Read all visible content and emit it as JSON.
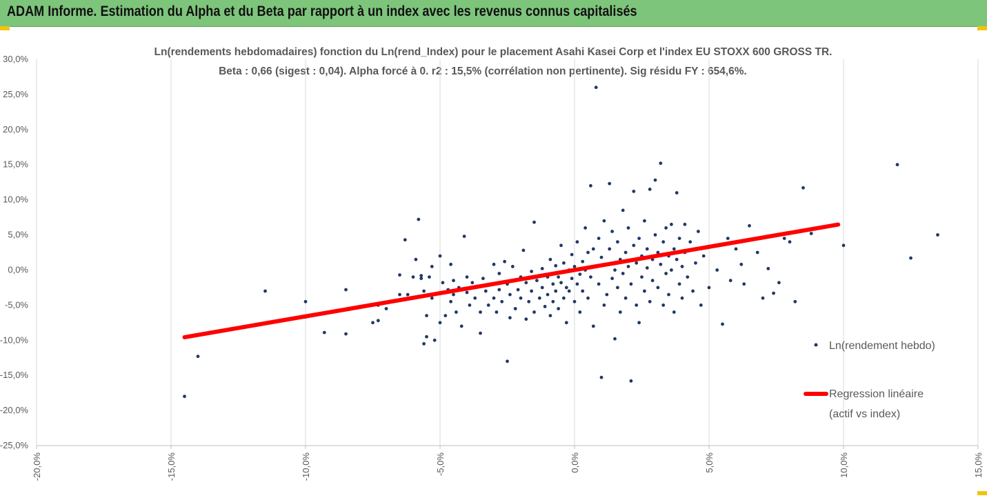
{
  "header": {
    "title": "ADAM Informe. Estimation du Alpha et du Beta par rapport à un index avec les revenus connus capitalisés"
  },
  "chart_data": {
    "type": "scatter",
    "title": "Ln(rendements hebdomadaires) fonction du Ln(rend_Index) pour le placement Asahi Kasei Corp et l'index EU STOXX 600 GROSS TR.",
    "subtitle": "Beta : 0,66 (sigest : 0,04). Alpha forcé à 0. r2 : 15,5% (corrélation non pertinente). Sig résidu FY : 654,6%.",
    "xlim": [
      -0.2,
      0.15
    ],
    "ylim": [
      -0.25,
      0.3
    ],
    "x_ticks": [
      -0.2,
      -0.15,
      -0.1,
      -0.05,
      0.0,
      0.05,
      0.1,
      0.15
    ],
    "y_ticks": [
      -0.25,
      -0.2,
      -0.15,
      -0.1,
      -0.05,
      0.0,
      0.05,
      0.1,
      0.15,
      0.2,
      0.25,
      0.3
    ],
    "x_tick_labels": [
      "-20,0%",
      "-15,0%",
      "-10,0%",
      "-5,0%",
      "0,0%",
      "5,0%",
      "10,0%",
      "15,0%"
    ],
    "y_tick_labels": [
      "-25,0%",
      "-20,0%",
      "-15,0%",
      "-10,0%",
      "-5,0%",
      "0,0%",
      "5,0%",
      "10,0%",
      "15,0%",
      "20,0%",
      "25,0%",
      "30,0%"
    ],
    "grid": "vertical",
    "legend_position": "right",
    "series": [
      {
        "name": "Ln(rendement hebdo)",
        "kind": "scatter",
        "color": "#203864",
        "points": [
          [
            -0.145,
            -0.18
          ],
          [
            -0.14,
            -0.123
          ],
          [
            -0.115,
            -0.03
          ],
          [
            -0.1,
            -0.045
          ],
          [
            -0.1,
            -0.067
          ],
          [
            -0.093,
            -0.089
          ],
          [
            -0.085,
            -0.091
          ],
          [
            -0.085,
            -0.028
          ],
          [
            -0.075,
            -0.075
          ],
          [
            -0.073,
            -0.072
          ],
          [
            -0.073,
            -0.05
          ],
          [
            -0.07,
            -0.055
          ],
          [
            -0.065,
            -0.035
          ],
          [
            -0.065,
            -0.007
          ],
          [
            -0.063,
            0.043
          ],
          [
            -0.062,
            -0.035
          ],
          [
            -0.06,
            -0.01
          ],
          [
            -0.059,
            0.015
          ],
          [
            -0.058,
            0.072
          ],
          [
            -0.057,
            -0.008
          ],
          [
            -0.057,
            -0.012
          ],
          [
            -0.056,
            -0.03
          ],
          [
            -0.056,
            -0.105
          ],
          [
            -0.055,
            -0.095
          ],
          [
            -0.055,
            -0.065
          ],
          [
            -0.054,
            -0.01
          ],
          [
            -0.053,
            -0.04
          ],
          [
            -0.053,
            0.005
          ],
          [
            -0.052,
            -0.1
          ],
          [
            -0.05,
            0.02
          ],
          [
            -0.05,
            -0.075
          ],
          [
            -0.049,
            -0.018
          ],
          [
            -0.048,
            -0.065
          ],
          [
            -0.047,
            -0.028
          ],
          [
            -0.046,
            0.008
          ],
          [
            -0.046,
            -0.045
          ],
          [
            -0.045,
            -0.035
          ],
          [
            -0.045,
            -0.015
          ],
          [
            -0.044,
            -0.06
          ],
          [
            -0.043,
            -0.025
          ],
          [
            -0.042,
            -0.08
          ],
          [
            -0.041,
            0.048
          ],
          [
            -0.04,
            -0.032
          ],
          [
            -0.04,
            -0.01
          ],
          [
            -0.039,
            -0.05
          ],
          [
            -0.038,
            -0.018
          ],
          [
            -0.037,
            -0.04
          ],
          [
            -0.036,
            -0.023
          ],
          [
            -0.035,
            -0.06
          ],
          [
            -0.035,
            -0.09
          ],
          [
            -0.034,
            -0.012
          ],
          [
            -0.033,
            -0.03
          ],
          [
            -0.032,
            -0.05
          ],
          [
            -0.031,
            -0.02
          ],
          [
            -0.03,
            0.008
          ],
          [
            -0.03,
            -0.04
          ],
          [
            -0.029,
            -0.06
          ],
          [
            -0.028,
            -0.005
          ],
          [
            -0.028,
            -0.028
          ],
          [
            -0.027,
            -0.045
          ],
          [
            -0.026,
            0.012
          ],
          [
            -0.025,
            -0.02
          ],
          [
            -0.025,
            -0.13
          ],
          [
            -0.024,
            -0.035
          ],
          [
            -0.024,
            -0.068
          ],
          [
            -0.023,
            0.005
          ],
          [
            -0.022,
            -0.055
          ],
          [
            -0.021,
            -0.028
          ],
          [
            -0.02,
            -0.01
          ],
          [
            -0.02,
            -0.04
          ],
          [
            -0.019,
            0.028
          ],
          [
            -0.018,
            -0.018
          ],
          [
            -0.018,
            -0.07
          ],
          [
            -0.017,
            -0.045
          ],
          [
            -0.016,
            -0.002
          ],
          [
            -0.016,
            -0.03
          ],
          [
            -0.015,
            -0.06
          ],
          [
            -0.015,
            0.068
          ],
          [
            -0.014,
            -0.015
          ],
          [
            -0.013,
            -0.04
          ],
          [
            -0.012,
            0.002
          ],
          [
            -0.012,
            -0.025
          ],
          [
            -0.011,
            -0.052
          ],
          [
            -0.01,
            -0.01
          ],
          [
            -0.01,
            -0.035
          ],
          [
            -0.009,
            0.015
          ],
          [
            -0.009,
            -0.065
          ],
          [
            -0.008,
            -0.02
          ],
          [
            -0.008,
            -0.045
          ],
          [
            -0.007,
            0.006
          ],
          [
            -0.007,
            -0.03
          ],
          [
            -0.006,
            -0.01
          ],
          [
            -0.006,
            -0.055
          ],
          [
            -0.005,
            0.035
          ],
          [
            -0.005,
            -0.018
          ],
          [
            -0.004,
            -0.04
          ],
          [
            -0.004,
            0.01
          ],
          [
            -0.003,
            -0.025
          ],
          [
            -0.003,
            -0.075
          ],
          [
            -0.002,
            0.0
          ],
          [
            -0.002,
            -0.03
          ],
          [
            -0.001,
            -0.012
          ],
          [
            -0.001,
            0.022
          ],
          [
            0.0,
            -0.045
          ],
          [
            0.0,
            0.005
          ],
          [
            0.001,
            -0.02
          ],
          [
            0.001,
            0.04
          ],
          [
            0.002,
            -0.006
          ],
          [
            0.002,
            -0.06
          ],
          [
            0.003,
            0.012
          ],
          [
            0.003,
            -0.03
          ],
          [
            0.004,
            0.06
          ],
          [
            0.004,
            0.0
          ],
          [
            0.005,
            -0.04
          ],
          [
            0.005,
            0.025
          ],
          [
            0.006,
            -0.01
          ],
          [
            0.006,
            0.12
          ],
          [
            0.007,
            0.03
          ],
          [
            0.007,
            -0.08
          ],
          [
            0.008,
            0.005
          ],
          [
            0.008,
            0.26
          ],
          [
            0.009,
            0.045
          ],
          [
            0.009,
            -0.02
          ],
          [
            0.01,
            0.018
          ],
          [
            0.01,
            -0.153
          ],
          [
            0.011,
            -0.05
          ],
          [
            0.011,
            0.07
          ],
          [
            0.012,
            0.008
          ],
          [
            0.012,
            -0.035
          ],
          [
            0.013,
            0.123
          ],
          [
            0.013,
            0.03
          ],
          [
            0.014,
            -0.012
          ],
          [
            0.014,
            0.055
          ],
          [
            0.015,
            -0.098
          ],
          [
            0.015,
            0.0
          ],
          [
            0.016,
            0.04
          ],
          [
            0.016,
            -0.025
          ],
          [
            0.017,
            0.015
          ],
          [
            0.017,
            -0.06
          ],
          [
            0.018,
            0.085
          ],
          [
            0.018,
            -0.005
          ],
          [
            0.019,
            0.025
          ],
          [
            0.019,
            -0.04
          ],
          [
            0.02,
            0.06
          ],
          [
            0.02,
            0.005
          ],
          [
            0.021,
            -0.158
          ],
          [
            0.021,
            -0.02
          ],
          [
            0.022,
            0.035
          ],
          [
            0.022,
            0.112
          ],
          [
            0.023,
            -0.05
          ],
          [
            0.023,
            0.01
          ],
          [
            0.024,
            0.045
          ],
          [
            0.024,
            -0.075
          ],
          [
            0.025,
            0.02
          ],
          [
            0.025,
            -0.01
          ],
          [
            0.026,
            0.07
          ],
          [
            0.026,
            -0.03
          ],
          [
            0.027,
            0.003
          ],
          [
            0.027,
            0.03
          ],
          [
            0.028,
            -0.045
          ],
          [
            0.028,
            0.115
          ],
          [
            0.029,
            0.015
          ],
          [
            0.029,
            -0.015
          ],
          [
            0.03,
            0.05
          ],
          [
            0.03,
            0.128
          ],
          [
            0.031,
            -0.025
          ],
          [
            0.031,
            0.025
          ],
          [
            0.032,
            0.008
          ],
          [
            0.032,
            0.152
          ],
          [
            0.033,
            -0.05
          ],
          [
            0.033,
            0.04
          ],
          [
            0.034,
            -0.005
          ],
          [
            0.034,
            0.06
          ],
          [
            0.035,
            0.02
          ],
          [
            0.035,
            -0.035
          ],
          [
            0.036,
            0.065
          ],
          [
            0.036,
            0.0
          ],
          [
            0.037,
            0.03
          ],
          [
            0.037,
            -0.06
          ],
          [
            0.038,
            0.015
          ],
          [
            0.038,
            0.11
          ],
          [
            0.039,
            -0.02
          ],
          [
            0.039,
            0.045
          ],
          [
            0.04,
            0.005
          ],
          [
            0.04,
            -0.04
          ],
          [
            0.041,
            0.065
          ],
          [
            0.041,
            0.025
          ],
          [
            0.042,
            -0.01
          ],
          [
            0.043,
            0.04
          ],
          [
            0.044,
            -0.03
          ],
          [
            0.045,
            0.01
          ],
          [
            0.046,
            0.055
          ],
          [
            0.047,
            -0.05
          ],
          [
            0.048,
            0.02
          ],
          [
            0.05,
            -0.025
          ],
          [
            0.052,
            0.035
          ],
          [
            0.053,
            0.0
          ],
          [
            0.055,
            -0.077
          ],
          [
            0.057,
            0.045
          ],
          [
            0.058,
            -0.015
          ],
          [
            0.06,
            0.03
          ],
          [
            0.062,
            0.008
          ],
          [
            0.063,
            -0.02
          ],
          [
            0.065,
            0.063
          ],
          [
            0.068,
            0.025
          ],
          [
            0.07,
            -0.04
          ],
          [
            0.072,
            0.002
          ],
          [
            0.074,
            -0.033
          ],
          [
            0.076,
            -0.018
          ],
          [
            0.078,
            0.045
          ],
          [
            0.08,
            0.04
          ],
          [
            0.082,
            -0.045
          ],
          [
            0.085,
            0.117
          ],
          [
            0.088,
            0.052
          ],
          [
            0.1,
            0.035
          ],
          [
            0.12,
            0.15
          ],
          [
            0.125,
            0.017
          ],
          [
            0.135,
            0.05
          ]
        ]
      },
      {
        "name": "Regression linéaire (actif vs index)",
        "kind": "line",
        "color": "#ff0000",
        "points": [
          [
            -0.145,
            -0.0957
          ],
          [
            0.098,
            0.0647
          ]
        ]
      }
    ]
  },
  "legend": {
    "scatter_label": "Ln(rendement hebdo)",
    "line_label_1": "Regression linéaire",
    "line_label_2": "(actif vs index)"
  }
}
